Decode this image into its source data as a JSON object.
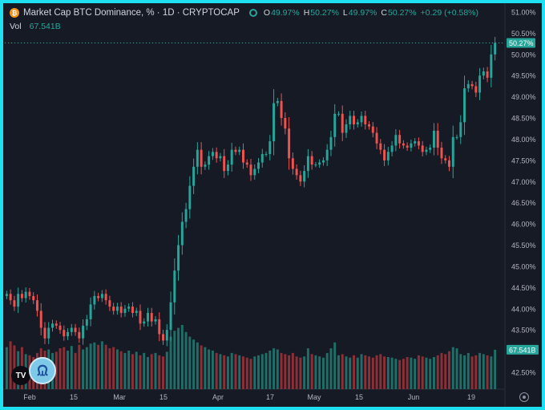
{
  "header": {
    "title": "Market Cap BTC Dominance, % · 1D · CRYPTOCAP",
    "icon": "btc-icon",
    "ohlc": {
      "o_label": "O",
      "o": "49.97%",
      "h_label": "H",
      "h": "50.27%",
      "l_label": "L",
      "l": "49.97%",
      "c_label": "C",
      "c": "50.27%",
      "change": "+0.29 (+0.58%)"
    },
    "vol_label": "Vol",
    "vol_value": "67.541B"
  },
  "colors": {
    "up": "#26a69a",
    "down": "#ef5350",
    "up_volume": "#1f6e67",
    "down_volume": "#8e2f35",
    "background": "#161a25",
    "frame": "#1ee0f0"
  },
  "price_badge": "50.27%",
  "volume_badge": "67.541B",
  "chart_data": {
    "type": "candlestick",
    "title": "Market Cap BTC Dominance, % · 1D · CRYPTOCAP",
    "interval": "1D",
    "ylim": [
      42.0,
      51.2
    ],
    "y_ticks": [
      "51.00%",
      "50.50%",
      "50.00%",
      "49.50%",
      "49.00%",
      "48.50%",
      "48.00%",
      "47.50%",
      "47.00%",
      "46.50%",
      "46.00%",
      "45.50%",
      "45.00%",
      "44.50%",
      "44.00%",
      "43.50%",
      "43.00%",
      "42.50%"
    ],
    "x_ticks": [
      "Feb",
      "15",
      "Mar",
      "15",
      "Apr",
      "17",
      "May",
      "15",
      "Jun",
      "19"
    ],
    "grid": false,
    "closes": [
      44.35,
      44.2,
      44.05,
      44.35,
      44.25,
      44.4,
      44.3,
      44.2,
      43.95,
      43.55,
      43.3,
      43.55,
      43.65,
      43.6,
      43.5,
      43.35,
      43.45,
      43.55,
      43.45,
      43.3,
      43.6,
      43.75,
      44.1,
      44.3,
      44.25,
      44.35,
      44.2,
      44.05,
      43.95,
      44.05,
      43.9,
      44.0,
      44.05,
      43.9,
      43.95,
      43.65,
      43.7,
      43.9,
      43.7,
      43.75,
      43.4,
      43.25,
      43.5,
      44.15,
      44.9,
      45.5,
      46.05,
      46.35,
      46.9,
      47.35,
      47.75,
      47.35,
      47.4,
      47.6,
      47.7,
      47.55,
      47.6,
      47.25,
      47.4,
      47.75,
      47.7,
      47.75,
      47.45,
      47.4,
      47.15,
      47.3,
      47.45,
      47.65,
      47.65,
      47.95,
      48.85,
      48.9,
      48.5,
      48.25,
      47.55,
      47.3,
      47.15,
      47.0,
      47.25,
      47.6,
      47.4,
      47.4,
      47.45,
      47.5,
      47.75,
      48.05,
      48.6,
      48.6,
      48.15,
      48.35,
      48.55,
      48.35,
      48.4,
      48.55,
      48.35,
      48.3,
      48.15,
      47.9,
      47.75,
      47.5,
      47.7,
      47.85,
      48.1,
      47.9,
      47.85,
      47.8,
      47.9,
      47.95,
      47.85,
      47.7,
      47.75,
      47.8,
      48.2,
      47.8,
      47.55,
      47.5,
      47.35,
      48.05,
      48.05,
      48.4,
      49.2,
      49.3,
      49.25,
      49.1,
      49.5,
      49.6,
      49.45,
      50.0,
      50.27
    ],
    "volumes_B": [
      72,
      82,
      75,
      65,
      72,
      60,
      58,
      55,
      62,
      70,
      66,
      68,
      62,
      64,
      70,
      72,
      66,
      74,
      62,
      76,
      68,
      72,
      78,
      80,
      76,
      82,
      76,
      70,
      72,
      68,
      65,
      62,
      66,
      60,
      64,
      58,
      62,
      55,
      60,
      62,
      58,
      56,
      64,
      90,
      100,
      105,
      110,
      98,
      90,
      85,
      80,
      75,
      72,
      68,
      66,
      62,
      60,
      58,
      56,
      62,
      60,
      58,
      56,
      54,
      52,
      56,
      58,
      60,
      62,
      66,
      70,
      68,
      62,
      60,
      58,
      62,
      56,
      54,
      56,
      70,
      60,
      58,
      56,
      54,
      62,
      70,
      80,
      58,
      60,
      56,
      54,
      58,
      54,
      60,
      58,
      56,
      54,
      58,
      60,
      56,
      55,
      54,
      52,
      50,
      52,
      55,
      54,
      52,
      58,
      56,
      54,
      52,
      55,
      58,
      62,
      60,
      65,
      72,
      70,
      60,
      58,
      62,
      56,
      58,
      62,
      60,
      58,
      56,
      67.541
    ]
  }
}
